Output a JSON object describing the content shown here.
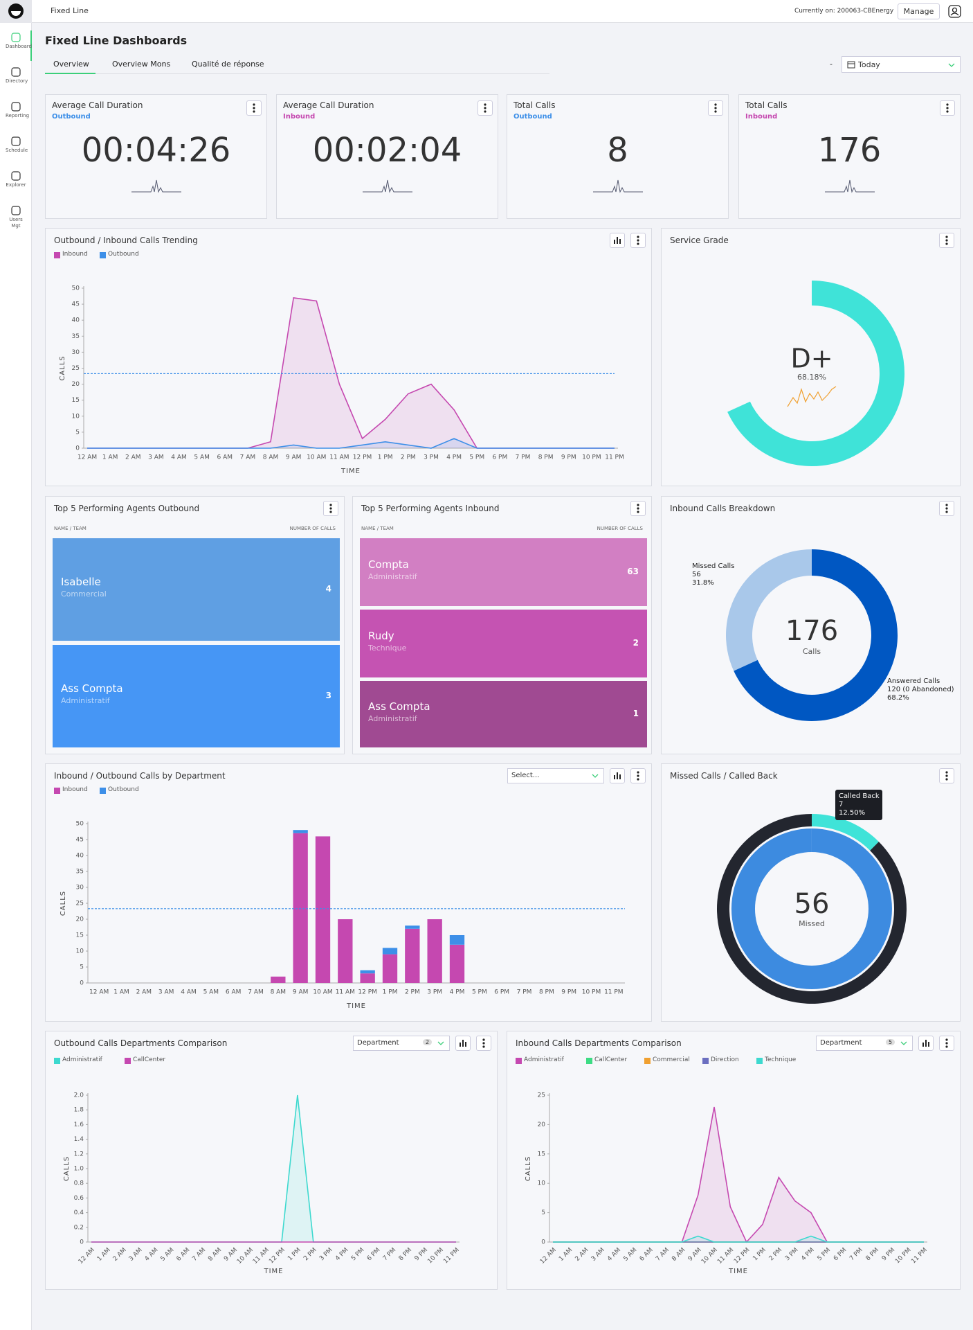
{
  "sidebar": {
    "items": [
      "Dashboard",
      "Directory",
      "Reporting",
      "Schedule",
      "Explorer",
      "Users Mgt"
    ]
  },
  "header": {
    "breadcrumb": "Fixed Line",
    "current": "Currently on: 200063-CBEnergy",
    "button": "Manage"
  },
  "page": {
    "title": "Fixed Line Dashboards",
    "tabs": [
      "Overview",
      "Overview Mons",
      "Qualité de réponse"
    ],
    "range_separator": "-",
    "date_filter": "Today"
  },
  "kpis": [
    {
      "title": "Average Call Duration",
      "subtitle": "Outbound",
      "subtitle_color": "#3d8fe8",
      "value": "00:04:26"
    },
    {
      "title": "Average Call Duration",
      "subtitle": "Inbound",
      "subtitle_color": "#c548b0",
      "value": "00:02:04"
    },
    {
      "title": "Total Calls",
      "subtitle": "Outbound",
      "subtitle_color": "#3d8fe8",
      "value": 8
    },
    {
      "title": "Total Calls",
      "subtitle": "Inbound",
      "subtitle_color": "#c548b0",
      "value": 176
    }
  ],
  "agents_outbound": {
    "title": "Top 5 Performing Agents Outbound",
    "col_name": "NAME / TEAM",
    "col_calls": "NUMBER OF CALLS",
    "rows": [
      {
        "name": "Isabelle",
        "team": "Commercial",
        "calls": 4,
        "color": "#5f9fe3"
      },
      {
        "name": "Ass Compta",
        "team": "Administratif",
        "calls": 3,
        "color": "#4696f5"
      }
    ]
  },
  "agents_inbound": {
    "title": "Top 5 Performing Agents Inbound",
    "col_name": "NAME / TEAM",
    "col_calls": "NUMBER OF CALLS",
    "rows": [
      {
        "name": "Compta",
        "team": "Administratif",
        "calls": 63,
        "color": "#d27fc3"
      },
      {
        "name": "Rudy",
        "team": "Technique",
        "calls": 2,
        "color": "#c553b2"
      },
      {
        "name": "Ass Compta",
        "team": "Administratif",
        "calls": 1,
        "color": "#a04a92"
      }
    ]
  },
  "chart_data": [
    {
      "type": "line",
      "title": "Outbound / Inbound Calls Trending",
      "ylabel": "CALLS",
      "xlabel": "TIME",
      "categories": [
        "12 AM",
        "1 AM",
        "2 AM",
        "3 AM",
        "4 AM",
        "5 AM",
        "6 AM",
        "7 AM",
        "8 AM",
        "9 AM",
        "10 AM",
        "11 AM",
        "12 PM",
        "1 PM",
        "2 PM",
        "3 PM",
        "4 PM",
        "5 PM",
        "6 PM",
        "7 PM",
        "8 PM",
        "9 PM",
        "10 PM",
        "11 PM"
      ],
      "series": [
        {
          "name": "Inbound",
          "color": "#c548b0",
          "values": [
            0,
            0,
            0,
            0,
            0,
            0,
            0,
            0,
            2,
            47,
            46,
            20,
            3,
            9,
            17,
            20,
            12,
            0,
            0,
            0,
            0,
            0,
            0,
            0
          ]
        },
        {
          "name": "Outbound",
          "color": "#3d8fe8",
          "values": [
            0,
            0,
            0,
            0,
            0,
            0,
            0,
            0,
            0,
            1,
            0,
            0,
            1,
            2,
            1,
            0,
            3,
            0,
            0,
            0,
            0,
            0,
            0,
            0
          ]
        }
      ],
      "reference_line": 23.3,
      "ylim": [
        0,
        50
      ],
      "yticks": [
        0,
        5,
        10,
        15,
        20,
        25,
        30,
        35,
        40,
        45,
        50
      ],
      "grid": false
    },
    {
      "type": "gauge",
      "title": "Service Grade",
      "grade": "D+",
      "value": 68.18,
      "value_label": "68.18%",
      "color": "#3fe3d8"
    },
    {
      "type": "donut",
      "title": "Inbound Calls Breakdown",
      "categories": [
        "Missed Calls",
        "Answered Calls"
      ],
      "values": [
        56,
        120
      ],
      "value_labels": [
        "56",
        "120 (0 Abandoned)"
      ],
      "share_labels": [
        "31.8%",
        "68.2%"
      ],
      "colors": [
        "#a9c8ea",
        "#0057c2"
      ],
      "total": 176,
      "center_label": "Calls"
    },
    {
      "type": "bar",
      "stacked": true,
      "title": "Inbound / Outbound Calls by Department",
      "filter_label": "Select...",
      "ylabel": "CALLS",
      "xlabel": "TIME",
      "categories": [
        "12 AM",
        "1 AM",
        "2 AM",
        "3 AM",
        "4 AM",
        "5 AM",
        "6 AM",
        "7 AM",
        "8 AM",
        "9 AM",
        "10 AM",
        "11 AM",
        "12 PM",
        "1 PM",
        "2 PM",
        "3 PM",
        "4 PM",
        "5 PM",
        "6 PM",
        "7 PM",
        "8 PM",
        "9 PM",
        "10 PM",
        "11 PM"
      ],
      "series": [
        {
          "name": "Inbound",
          "color": "#c548b0",
          "values": [
            0,
            0,
            0,
            0,
            0,
            0,
            0,
            0,
            2,
            47,
            46,
            20,
            3,
            9,
            17,
            20,
            12,
            0,
            0,
            0,
            0,
            0,
            0,
            0
          ]
        },
        {
          "name": "Outbound",
          "color": "#3d8fe8",
          "values": [
            0,
            0,
            0,
            0,
            0,
            0,
            0,
            0,
            0,
            1,
            0,
            0,
            1,
            2,
            1,
            0,
            3,
            0,
            0,
            0,
            0,
            0,
            0,
            0
          ]
        }
      ],
      "reference_line": 23.3,
      "ylim": [
        0,
        50
      ],
      "yticks": [
        0,
        5,
        10,
        15,
        20,
        25,
        30,
        35,
        40,
        45,
        50
      ],
      "grid": false
    },
    {
      "type": "ring",
      "title": "Missed Calls / Called Back",
      "categories": [
        "Called Back",
        null
      ],
      "values": [
        7,
        49
      ],
      "colors": [
        "#3fe3d8",
        "#23262f"
      ],
      "tooltip_share": "12.50%",
      "center_value": 56,
      "center_label": "Missed",
      "center_color": "#3d8be0"
    },
    {
      "type": "line",
      "title": "Outbound Calls Departments Comparison",
      "filter_label": "Department",
      "filter_count": 2,
      "ylabel": "CALLS",
      "xlabel": "TIME",
      "categories": [
        "12 AM",
        "1 AM",
        "2 AM",
        "3 AM",
        "4 AM",
        "5 AM",
        "6 AM",
        "7 AM",
        "8 AM",
        "9 AM",
        "10 AM",
        "11 AM",
        "12 PM",
        "1 PM",
        "2 PM",
        "3 PM",
        "4 PM",
        "5 PM",
        "6 PM",
        "7 PM",
        "8 PM",
        "9 PM",
        "10 PM",
        "11 PM"
      ],
      "series": [
        {
          "name": "Administratif",
          "color": "#3dd9cf",
          "values": [
            0,
            0,
            0,
            0,
            0,
            0,
            0,
            0,
            0,
            0,
            0,
            0,
            0,
            2,
            0,
            0,
            0,
            0,
            0,
            0,
            0,
            0,
            0,
            0
          ]
        },
        {
          "name": "CallCenter",
          "color": "#c548b0",
          "values": [
            0,
            0,
            0,
            0,
            0,
            0,
            0,
            0,
            0,
            0,
            0,
            0,
            0,
            0,
            0,
            0,
            0,
            0,
            0,
            0,
            0,
            0,
            0,
            0
          ]
        }
      ],
      "ylim": [
        0,
        2
      ],
      "yticks": [
        0,
        0.2,
        0.4,
        0.6,
        0.8,
        {
          "value": 1,
          "label": "1.0"
        },
        1.2,
        1.4,
        1.6,
        1.8,
        {
          "value": 2,
          "label": "2.0"
        }
      ],
      "grid": false
    },
    {
      "type": "line",
      "title": "Inbound Calls Departments Comparison",
      "filter_label": "Department",
      "filter_count": 5,
      "ylabel": "CALLS",
      "xlabel": "TIME",
      "categories": [
        "12 AM",
        "1 AM",
        "2 AM",
        "3 AM",
        "4 AM",
        "5 AM",
        "6 AM",
        "7 AM",
        "8 AM",
        "9 AM",
        "10 AM",
        "11 AM",
        "12 PM",
        "1 PM",
        "2 PM",
        "3 PM",
        "4 PM",
        "5 PM",
        "6 PM",
        "7 PM",
        "8 PM",
        "9 PM",
        "10 PM",
        "11 PM"
      ],
      "series": [
        {
          "name": "Administratif",
          "color": "#c548b0",
          "values": [
            0,
            0,
            0,
            0,
            0,
            0,
            0,
            0,
            0,
            8,
            23,
            6,
            0,
            3,
            11,
            7,
            5,
            0,
            0,
            0,
            0,
            0,
            0,
            0
          ]
        },
        {
          "name": "CallCenter",
          "color": "#3ddc84",
          "values": [
            0,
            0,
            0,
            0,
            0,
            0,
            0,
            0,
            0,
            0,
            0,
            0,
            0,
            0,
            0,
            0,
            0,
            0,
            0,
            0,
            0,
            0,
            0,
            0
          ]
        },
        {
          "name": "Commercial",
          "color": "#f0a030",
          "values": [
            0,
            0,
            0,
            0,
            0,
            0,
            0,
            0,
            0,
            0,
            0,
            0,
            0,
            0,
            0,
            0,
            0,
            0,
            0,
            0,
            0,
            0,
            0,
            0
          ]
        },
        {
          "name": "Direction",
          "color": "#6b6fc0",
          "values": [
            0,
            0,
            0,
            0,
            0,
            0,
            0,
            0,
            0,
            0,
            0,
            0,
            0,
            0,
            0,
            0,
            0,
            0,
            0,
            0,
            0,
            0,
            0,
            0
          ]
        },
        {
          "name": "Technique",
          "color": "#3dd9cf",
          "values": [
            0,
            0,
            0,
            0,
            0,
            0,
            0,
            0,
            0,
            1,
            0,
            0,
            0,
            0,
            0,
            0,
            1,
            0,
            0,
            0,
            0,
            0,
            0,
            0
          ]
        }
      ],
      "ylim": [
        0,
        25
      ],
      "yticks": [
        0,
        5,
        10,
        15,
        20,
        25
      ],
      "grid": false
    }
  ]
}
